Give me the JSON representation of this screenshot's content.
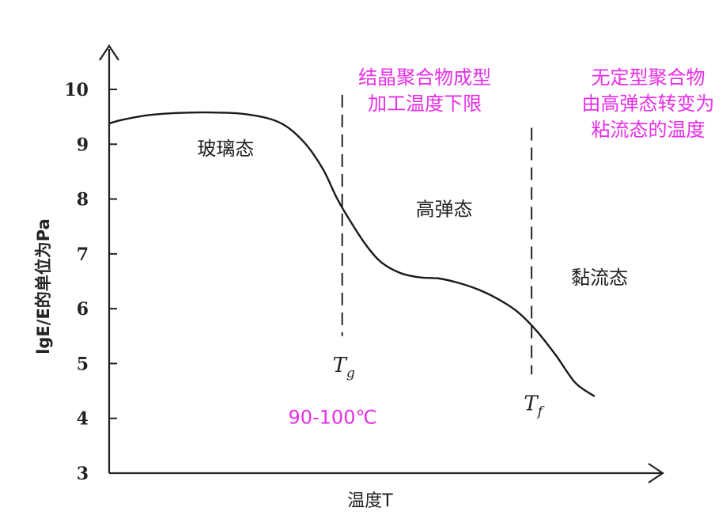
{
  "chart_data": {
    "type": "line",
    "xlabel": "温度T",
    "ylabel": "lgE/E的单位为Pa",
    "ylim": [
      3,
      10.6
    ],
    "yticks": [
      3,
      4,
      5,
      6,
      7,
      8,
      9,
      10
    ],
    "xlim": [
      0,
      100
    ],
    "series": [
      {
        "x": [
          0,
          3,
          8,
          14,
          20,
          28,
          35,
          40,
          44,
          47,
          50,
          53,
          56,
          60,
          64,
          68,
          72,
          76,
          80,
          84,
          88,
          92,
          96,
          100
        ],
        "values": [
          9.38,
          9.45,
          9.53,
          9.57,
          9.58,
          9.55,
          9.4,
          9.05,
          8.55,
          8.0,
          7.55,
          7.15,
          6.85,
          6.65,
          6.57,
          6.55,
          6.47,
          6.35,
          6.18,
          5.95,
          5.6,
          5.15,
          4.65,
          4.4
        ]
      }
    ],
    "markers": [
      {
        "name": "Tg",
        "symbol": "T",
        "sub": "g",
        "x": 48,
        "y_from": 5.5,
        "y_to": 9.9
      },
      {
        "name": "Tf",
        "symbol": "T",
        "sub": "f",
        "x": 87,
        "y_from": 4.8,
        "y_to": 9.3
      }
    ],
    "regions": [
      {
        "label": "玻璃态",
        "x": 24,
        "y": 8.8
      },
      {
        "label": "高弹态",
        "x": 69,
        "y": 7.7
      },
      {
        "label": "黏流态",
        "x": 101,
        "y": 6.45
      }
    ],
    "annotations": [
      {
        "lines": [
          "结晶聚合物成型",
          "加工温度下限"
        ],
        "x": 65,
        "y": 10.1,
        "color": "#e62ee6"
      },
      {
        "lines": [
          "无定型聚合物",
          "由高弹态转变为",
          "粘流态的温度"
        ],
        "x": 111,
        "y": 10.1,
        "color": "#e62ee6"
      },
      {
        "lines": [
          "90-100℃"
        ],
        "x": 46,
        "y": 3.9,
        "color": "#e62ee6"
      }
    ]
  }
}
